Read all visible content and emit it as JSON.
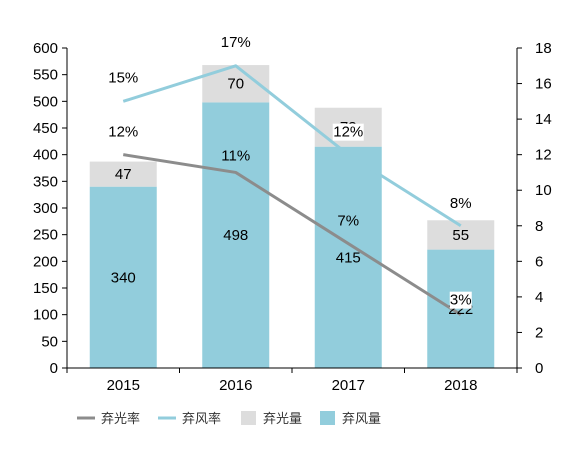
{
  "chart_data": {
    "type": "bar",
    "categories": [
      "2015",
      "2016",
      "2017",
      "2018"
    ],
    "stacked": true,
    "y_left": {
      "min": 0,
      "max": 600,
      "step": 50
    },
    "y_right": {
      "min": 0,
      "max": 18,
      "step": 2
    },
    "series": [
      {
        "name": "弃风量",
        "kind": "bar",
        "axis": "left",
        "color": "#92cddc",
        "values": [
          340,
          498,
          415,
          222
        ]
      },
      {
        "name": "弃光量",
        "kind": "bar",
        "axis": "left",
        "color": "#dddddd",
        "values": [
          47,
          70,
          73,
          55
        ]
      },
      {
        "name": "弃光率",
        "kind": "line",
        "axis": "right",
        "color": "#8c8c8c",
        "values": [
          12,
          11,
          7,
          3
        ],
        "labels": [
          "12%",
          "11%",
          "7%",
          "3%"
        ]
      },
      {
        "name": "弃风率",
        "kind": "line",
        "axis": "right",
        "color": "#92cddc",
        "values": [
          15,
          17,
          12,
          8
        ],
        "labels": [
          "15%",
          "17%",
          "12%",
          "8%"
        ]
      }
    ],
    "legend": {
      "position": "bottom",
      "items": [
        {
          "name": "弃光率",
          "symbol": "line",
          "color": "#8c8c8c"
        },
        {
          "name": "弃风率",
          "symbol": "line",
          "color": "#92cddc"
        },
        {
          "name": "弃光量",
          "symbol": "box",
          "color": "#dddddd"
        },
        {
          "name": "弃风量",
          "symbol": "box",
          "color": "#92cddc"
        }
      ]
    },
    "grid": false
  }
}
